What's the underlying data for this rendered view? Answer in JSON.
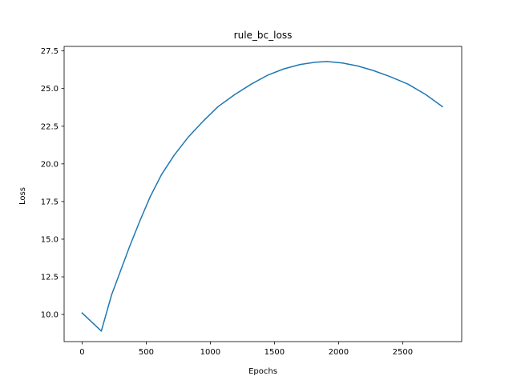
{
  "chart_data": {
    "type": "line",
    "title": "rule_bc_loss",
    "xlabel": "Epochs",
    "ylabel": "Loss",
    "xlim": [
      -140,
      2960
    ],
    "ylim": [
      8.2,
      27.8
    ],
    "grid": false,
    "xticks": [
      0,
      500,
      1000,
      1500,
      2000,
      2500
    ],
    "xtick_labels": [
      "0",
      "500",
      "1000",
      "1500",
      "2000",
      "2500"
    ],
    "yticks": [
      10.0,
      12.5,
      15.0,
      17.5,
      20.0,
      22.5,
      25.0,
      27.5
    ],
    "ytick_labels": [
      "10.0",
      "12.5",
      "15.0",
      "17.5",
      "20.0",
      "22.5",
      "25.0",
      "27.5"
    ],
    "series": [
      {
        "color": "#1f77b4",
        "x": [
          0,
          150,
          230,
          300,
          370,
          450,
          530,
          620,
          720,
          830,
          940,
          1060,
          1190,
          1320,
          1450,
          1570,
          1700,
          1820,
          1910,
          2030,
          2150,
          2270,
          2400,
          2540,
          2680,
          2810
        ],
        "y": [
          10.1,
          8.9,
          11.3,
          12.9,
          14.5,
          16.2,
          17.8,
          19.3,
          20.6,
          21.8,
          22.8,
          23.8,
          24.6,
          25.3,
          25.9,
          26.3,
          26.6,
          26.75,
          26.8,
          26.7,
          26.5,
          26.2,
          25.8,
          25.3,
          24.6,
          23.8
        ]
      }
    ]
  }
}
